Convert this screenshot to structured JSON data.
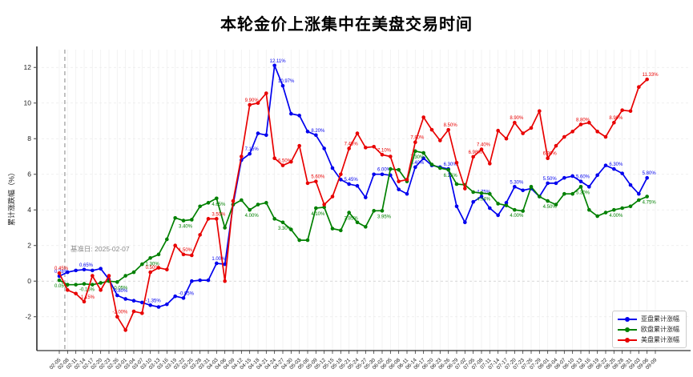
{
  "chart_data": {
    "type": "line",
    "title": "本轮金价上涨集中在美盘交易时间",
    "xlabel": "",
    "ylabel": "累计涨跌幅（%）",
    "ylim": [
      -3.9,
      13.0
    ],
    "yticks": [
      -2,
      0,
      2,
      4,
      6,
      8,
      10,
      12
    ],
    "grid": true,
    "legend_position": "lower right",
    "baseline": {
      "label": "基准日: 2025-02-07",
      "date_label": "02-07",
      "color": "#999999"
    },
    "x_labels": [
      "02-05",
      "02-08",
      "02-11",
      "02-14",
      "02-17",
      "02-20",
      "02-23",
      "02-26",
      "03-01",
      "03-04",
      "03-07",
      "03-10",
      "03-13",
      "03-16",
      "03-19",
      "03-22",
      "03-25",
      "03-28",
      "03-31",
      "04-03",
      "04-06",
      "04-09",
      "04-12",
      "04-15",
      "04-18",
      "04-21",
      "04-24",
      "04-27",
      "04-30",
      "05-03",
      "05-06",
      "05-09",
      "05-12",
      "05-15",
      "05-18",
      "05-21",
      "05-24",
      "05-27",
      "05-30",
      "06-02",
      "06-05",
      "06-08",
      "06-11",
      "06-14",
      "06-17",
      "06-20",
      "06-23",
      "06-26",
      "06-29",
      "07-02",
      "07-05",
      "07-08",
      "07-11",
      "07-14",
      "07-17",
      "07-20",
      "07-23",
      "07-26",
      "07-29",
      "08-01",
      "08-04",
      "08-07",
      "08-10",
      "08-13",
      "08-16",
      "08-19",
      "08-22",
      "08-25",
      "08-28",
      "08-31",
      "09-03",
      "09-06",
      "09-09"
    ],
    "series": [
      {
        "name": "亚盘累计涨幅",
        "color": "#0000ee",
        "values": [
          0.28,
          0.5,
          0.6,
          0.65,
          0.6,
          0.7,
          0.1,
          -0.8,
          -1.0,
          -1.1,
          -1.2,
          -1.35,
          -1.45,
          -1.3,
          -0.85,
          -0.95,
          0.0,
          0.05,
          0.05,
          1.0,
          0.95,
          4.3,
          6.8,
          7.15,
          8.3,
          8.2,
          12.11,
          10.97,
          9.4,
          9.3,
          8.4,
          8.2,
          7.45,
          6.35,
          5.7,
          5.45,
          5.35,
          4.7,
          6.0,
          6.0,
          5.95,
          5.15,
          4.9,
          6.4,
          6.9,
          6.5,
          6.4,
          6.3,
          4.2,
          3.3,
          4.45,
          4.75,
          4.1,
          3.7,
          4.4,
          5.3,
          5.1,
          5.2,
          4.75,
          5.5,
          5.5,
          5.8,
          5.9,
          5.6,
          5.3,
          5.95,
          6.5,
          6.3,
          6.05,
          5.4,
          4.9,
          5.8,
          null
        ]
      },
      {
        "name": "欧盘累计涨幅",
        "color": "#008000",
        "values": [
          0.05,
          -0.2,
          -0.2,
          -0.15,
          -0.2,
          -0.1,
          0.0,
          -0.05,
          0.3,
          0.5,
          0.95,
          1.3,
          1.5,
          2.35,
          3.55,
          3.4,
          3.45,
          4.2,
          4.4,
          4.65,
          3.0,
          4.3,
          4.55,
          4.0,
          4.3,
          4.4,
          3.5,
          3.3,
          2.9,
          2.3,
          2.3,
          4.1,
          4.15,
          2.95,
          2.85,
          3.85,
          3.3,
          3.05,
          3.95,
          3.95,
          6.3,
          6.25,
          5.6,
          7.3,
          7.2,
          6.55,
          6.35,
          6.25,
          5.45,
          5.41,
          5.0,
          4.94,
          4.9,
          4.35,
          4.25,
          4.0,
          3.94,
          5.3,
          4.75,
          4.5,
          4.3,
          4.9,
          4.9,
          5.3,
          4.0,
          3.65,
          3.85,
          4.0,
          4.1,
          4.2,
          4.55,
          4.75,
          null
        ]
      },
      {
        "name": "美盘累计涨幅",
        "color": "#e80000",
        "values": [
          0.45,
          -0.5,
          -0.7,
          -1.15,
          0.3,
          -0.5,
          0.3,
          -2.0,
          -2.75,
          -1.7,
          -1.8,
          0.5,
          0.75,
          0.65,
          2.0,
          1.5,
          1.45,
          2.6,
          3.5,
          3.5,
          0.0,
          4.5,
          7.0,
          9.9,
          10.0,
          10.55,
          6.9,
          6.5,
          6.7,
          7.6,
          5.5,
          5.6,
          4.3,
          4.75,
          6.0,
          7.45,
          8.3,
          7.5,
          7.55,
          7.1,
          7.0,
          5.6,
          5.7,
          7.8,
          9.2,
          8.5,
          7.9,
          8.5,
          6.65,
          5.2,
          6.98,
          7.4,
          6.6,
          8.45,
          8.0,
          8.9,
          8.3,
          8.6,
          9.55,
          6.9,
          7.6,
          8.1,
          8.4,
          8.8,
          8.9,
          8.4,
          8.1,
          8.9,
          9.6,
          9.55,
          10.9,
          11.33,
          null
        ]
      }
    ],
    "point_labels": [
      {
        "series_index": 0,
        "index": 26,
        "text": "12.11%"
      },
      {
        "series_index": 0,
        "index": 27,
        "text": "10.97%"
      },
      {
        "series_index": 2,
        "index": 71,
        "text": "11.33%"
      },
      {
        "series_index": 2,
        "index": 50,
        "text": "6.98%"
      }
    ]
  }
}
